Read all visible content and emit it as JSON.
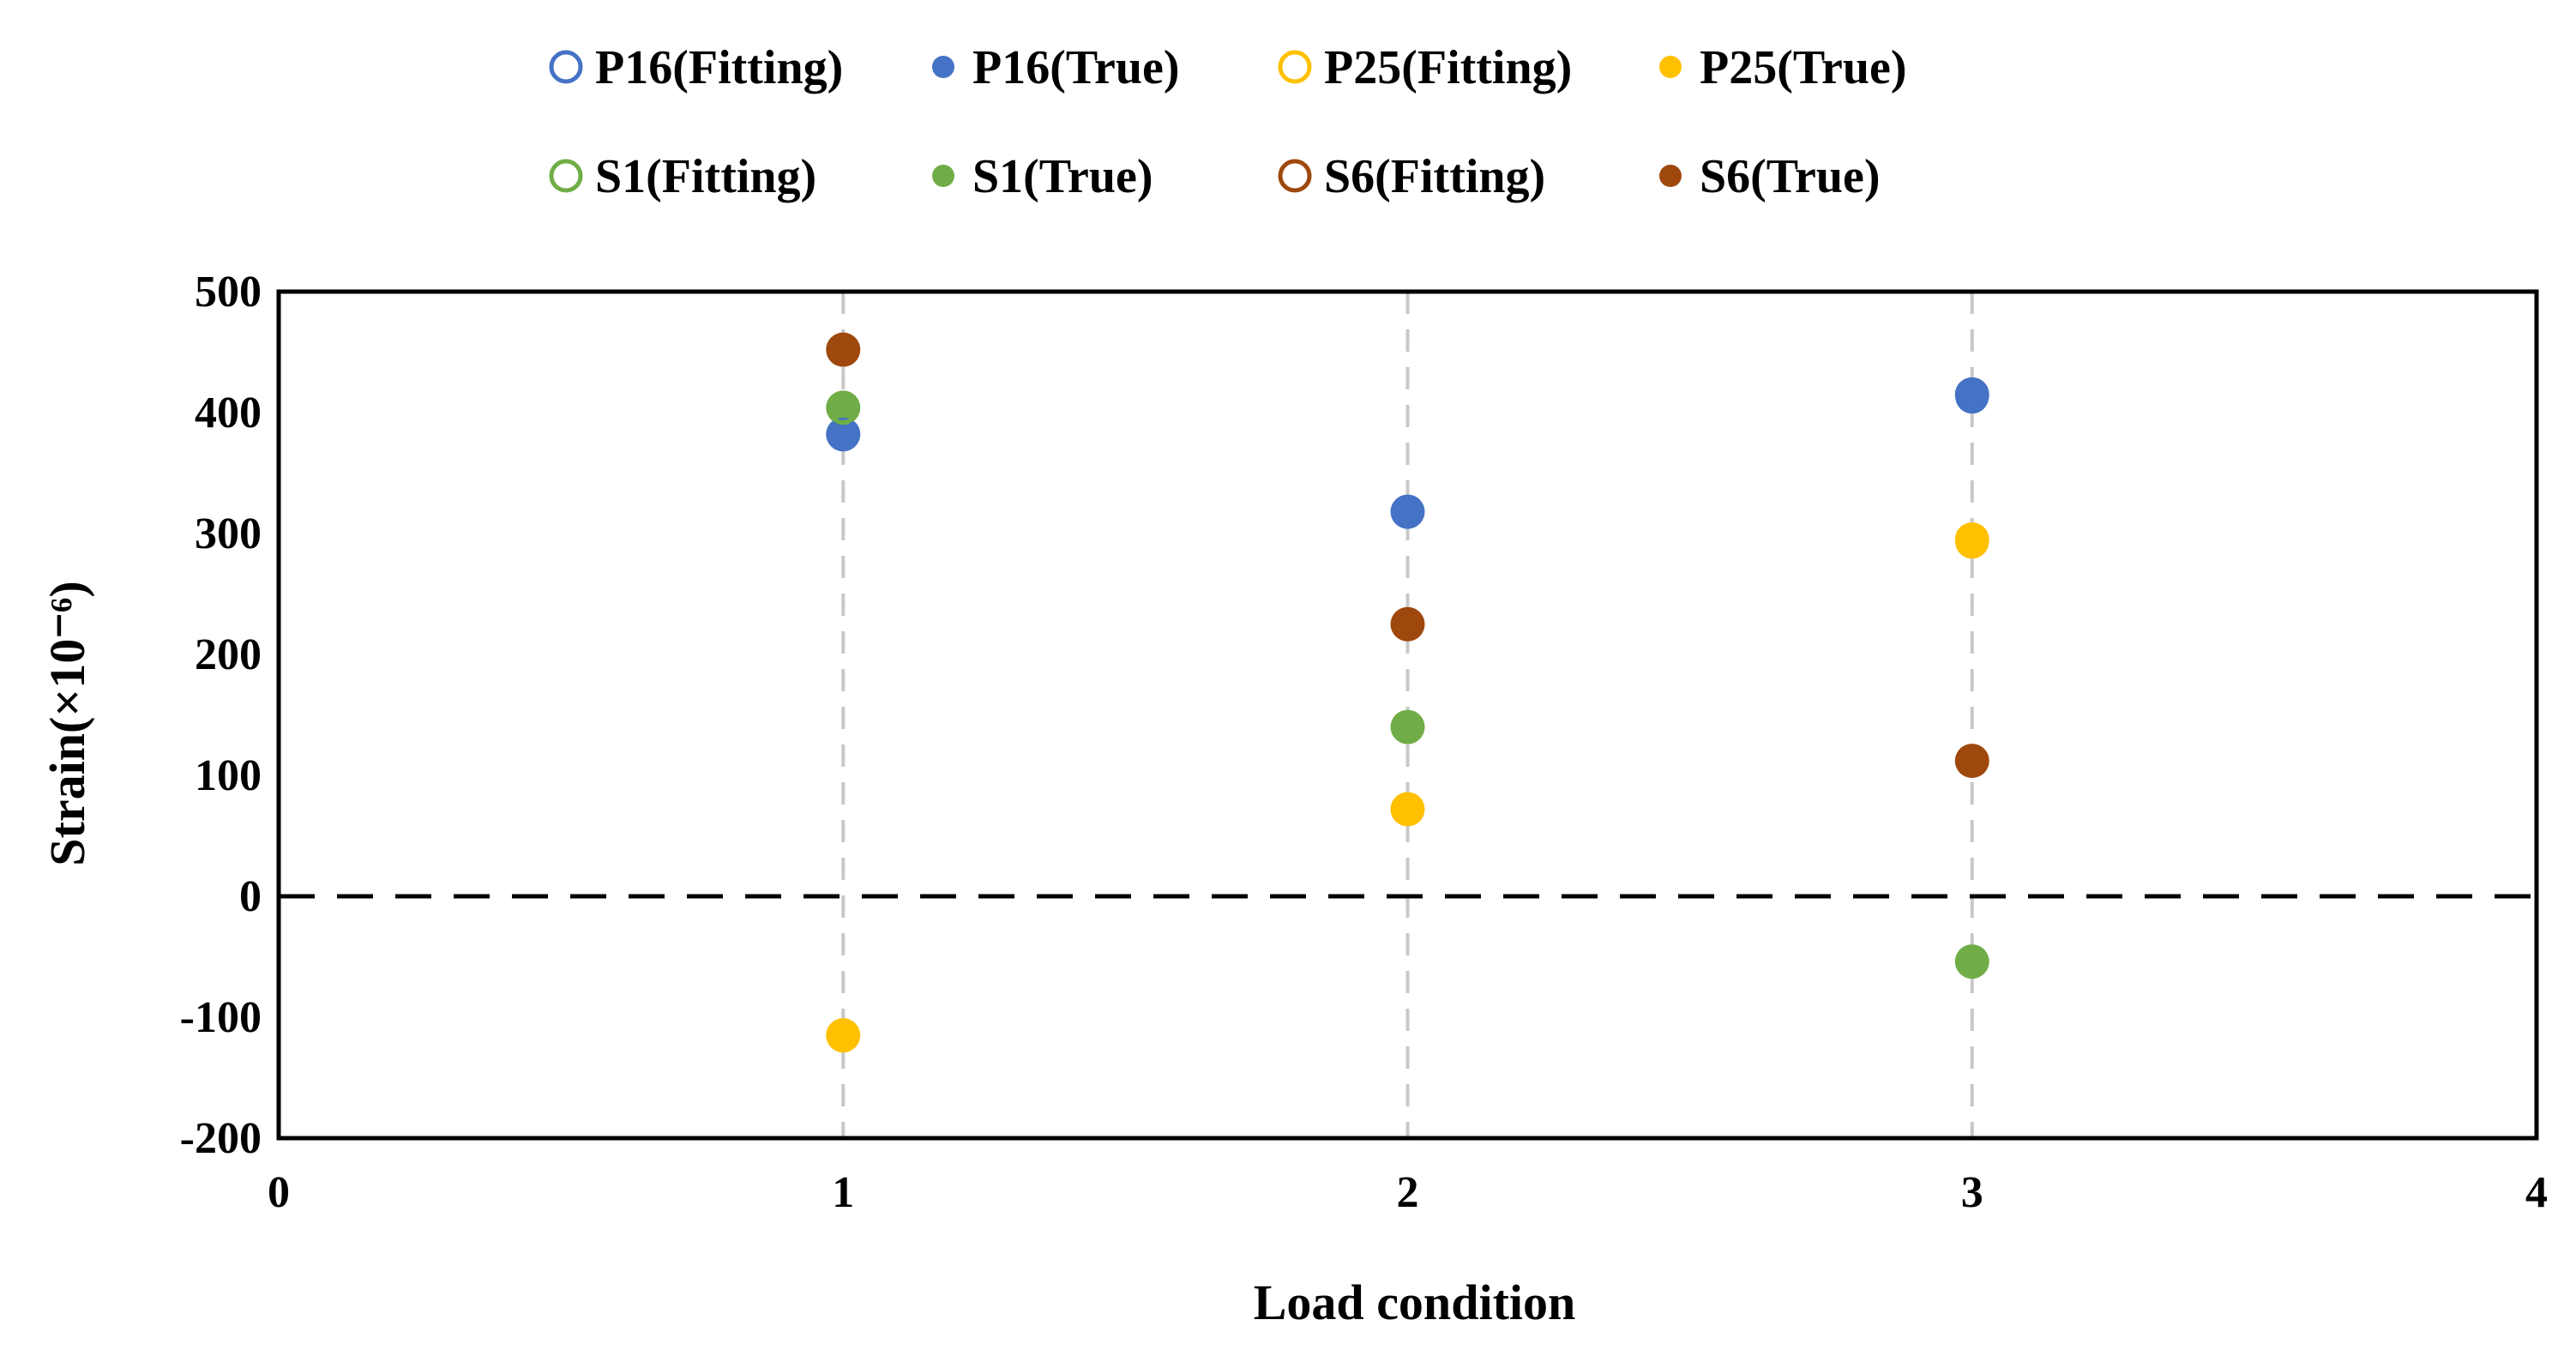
{
  "chart_data": {
    "type": "scatter",
    "title": "",
    "xlabel": "Load condition",
    "ylabel": "Strain(×10⁻⁶)",
    "xlim": [
      0,
      4
    ],
    "ylim": [
      -200,
      500
    ],
    "xticks": [
      "0",
      "1",
      "2",
      "3",
      "4"
    ],
    "yticks": [
      "500",
      "400",
      "300",
      "200",
      "100",
      "0",
      "-100",
      "-200"
    ],
    "grid": "vertical dashed at x = 1, 2, 3",
    "reference_line": {
      "y": 0,
      "style": "dashed"
    },
    "legend_position": "top",
    "series": [
      {
        "name": "P16(Fitting)",
        "color": "#4472C4",
        "marker": "hollow",
        "x": [
          1,
          2,
          3
        ],
        "y": [
          382,
          318,
          413
        ]
      },
      {
        "name": "P16(True)",
        "color": "#4472C4",
        "marker": "filled",
        "x": [
          1,
          2,
          3
        ],
        "y": [
          382,
          318,
          415
        ]
      },
      {
        "name": "P25(Fitting)",
        "color": "#FFC000",
        "marker": "hollow",
        "x": [
          1,
          2,
          3
        ],
        "y": [
          -115,
          72,
          293
        ]
      },
      {
        "name": "P25(True)",
        "color": "#FFC000",
        "marker": "filled",
        "x": [
          1,
          2,
          3
        ],
        "y": [
          -115,
          72,
          295
        ]
      },
      {
        "name": "S1(Fitting)",
        "color": "#70AD47",
        "marker": "hollow",
        "x": [
          1,
          2,
          3
        ],
        "y": [
          404,
          140,
          -54
        ]
      },
      {
        "name": "S1(True)",
        "color": "#70AD47",
        "marker": "filled",
        "x": [
          1,
          2,
          3
        ],
        "y": [
          404,
          140,
          -54
        ]
      },
      {
        "name": "S6(Fitting)",
        "color": "#9E480E",
        "marker": "hollow",
        "x": [
          1,
          2,
          3
        ],
        "y": [
          452,
          225,
          112
        ]
      },
      {
        "name": "S6(True)",
        "color": "#9E480E",
        "marker": "filled",
        "x": [
          1,
          2,
          3
        ],
        "y": [
          452,
          225,
          112
        ]
      }
    ]
  }
}
